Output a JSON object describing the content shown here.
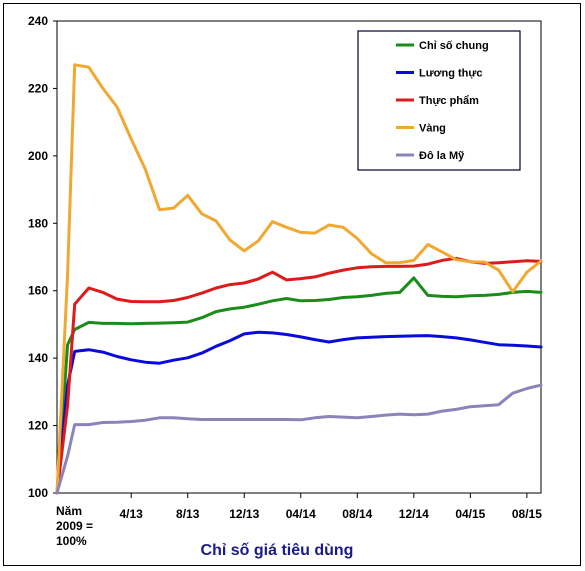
{
  "chart_data": {
    "type": "line",
    "title": "",
    "xlabel": "Chỉ số giá tiêu dùng",
    "ylabel": "",
    "ylim": [
      100,
      240
    ],
    "yticks": [
      100,
      120,
      140,
      160,
      180,
      200,
      220,
      240
    ],
    "base_label": [
      "Năm",
      "2009 =",
      "100%"
    ],
    "xticks": [
      {
        "label": "4/13",
        "x": 4
      },
      {
        "label": "8/13",
        "x": 8
      },
      {
        "label": "12/13",
        "x": 12
      },
      {
        "label": "04/14",
        "x": 16
      },
      {
        "label": "08/14",
        "x": 20
      },
      {
        "label": "12/14",
        "x": 24
      },
      {
        "label": "04/15",
        "x": 28
      },
      {
        "label": "08/15",
        "x": 32
      }
    ],
    "xlim": [
      -1.25,
      33
    ],
    "grid": false,
    "legend_position": "top-right",
    "series": [
      {
        "name": "Chỉ số chung",
        "color": "#1a8c1a",
        "x": [
          -1.25,
          -0.5,
          0,
          1,
          2,
          3,
          4,
          5,
          6,
          7,
          8,
          9,
          10,
          11,
          12,
          13,
          14,
          15,
          16,
          17,
          18,
          19,
          20,
          21,
          22,
          23,
          24,
          25,
          26,
          27,
          28,
          29,
          30,
          31,
          32,
          33
        ],
        "values": [
          100,
          144,
          148.5,
          150.6,
          150.3,
          150.3,
          150.2,
          150.3,
          150.4,
          150.5,
          150.7,
          152,
          153.8,
          154.6,
          155.1,
          156,
          157,
          157.7,
          157,
          157.1,
          157.4,
          158,
          158.2,
          158.6,
          159.2,
          159.5,
          163.8,
          158.6,
          158.3,
          158.2,
          158.5,
          158.6,
          158.9,
          159.5,
          159.8,
          159.5
        ]
      },
      {
        "name": "Lương thực",
        "color": "#0a0adf",
        "x": [
          -1.25,
          -0.5,
          0,
          1,
          2,
          3,
          4,
          5,
          6,
          7,
          8,
          9,
          10,
          11,
          12,
          13,
          14,
          15,
          16,
          17,
          18,
          19,
          20,
          21,
          22,
          23,
          24,
          25,
          26,
          27,
          28,
          29,
          30,
          31,
          32,
          33
        ],
        "values": [
          100,
          132,
          142,
          142.5,
          141.8,
          140.5,
          139.5,
          138.8,
          138.5,
          139.4,
          140.1,
          141.5,
          143.5,
          145.2,
          147.2,
          147.7,
          147.5,
          147,
          146.3,
          145.5,
          144.8,
          145.5,
          146,
          146.2,
          146.4,
          146.5,
          146.6,
          146.7,
          146.4,
          146,
          145.4,
          144.7,
          144,
          143.8,
          143.6,
          143.3
        ]
      },
      {
        "name": "Thực phẩm",
        "color": "#e01a1a",
        "x": [
          -1.25,
          -0.5,
          0,
          1,
          2,
          3,
          4,
          5,
          6,
          7,
          8,
          9,
          10,
          11,
          12,
          13,
          14,
          15,
          16,
          17,
          18,
          19,
          20,
          21,
          22,
          23,
          24,
          25,
          26,
          27,
          28,
          29,
          30,
          31,
          32,
          33
        ],
        "values": [
          100,
          126,
          156,
          160.8,
          159.5,
          157.5,
          156.8,
          156.7,
          156.7,
          157.1,
          158,
          159.3,
          160.8,
          161.8,
          162.3,
          163.5,
          165.5,
          163.2,
          163.6,
          164.1,
          165.2,
          166.1,
          166.8,
          167.1,
          167.2,
          167.2,
          167.3,
          167.9,
          169,
          169.6,
          168.6,
          168.1,
          168.3,
          168.6,
          168.9,
          168.7
        ]
      },
      {
        "name": "Vàng",
        "color": "#f0a830",
        "x": [
          -1.25,
          -0.5,
          0,
          1,
          2,
          3,
          4,
          5,
          6,
          7,
          8,
          9,
          10,
          11,
          12,
          13,
          14,
          15,
          16,
          17,
          18,
          19,
          20,
          21,
          22,
          23,
          24,
          25,
          26,
          27,
          28,
          29,
          30,
          31,
          32,
          33
        ],
        "values": [
          100,
          165,
          227,
          226.3,
          220,
          214.5,
          205,
          196,
          184,
          184.5,
          188.3,
          182.8,
          180.7,
          175,
          171.8,
          174.8,
          180.5,
          178.8,
          177.3,
          177.1,
          179.5,
          178.8,
          175.5,
          171,
          168.3,
          168.3,
          169,
          173.7,
          171.5,
          169.2,
          168.6,
          168.5,
          166.1,
          159.7,
          165.5,
          168.8
        ]
      },
      {
        "name": "Đô la Mỹ",
        "color": "#8a84b8",
        "x": [
          -1.25,
          -0.5,
          0,
          1,
          2,
          3,
          4,
          5,
          6,
          7,
          8,
          9,
          10,
          11,
          12,
          13,
          14,
          15,
          16,
          17,
          18,
          19,
          20,
          21,
          22,
          23,
          24,
          25,
          26,
          27,
          28,
          29,
          30,
          31,
          32,
          33
        ],
        "values": [
          100,
          111,
          120.3,
          120.3,
          120.9,
          121,
          121.2,
          121.6,
          122.3,
          122.3,
          122,
          121.8,
          121.8,
          121.8,
          121.8,
          121.8,
          121.8,
          121.8,
          121.7,
          122.3,
          122.7,
          122.5,
          122.3,
          122.7,
          123.1,
          123.4,
          123.2,
          123.4,
          124.3,
          124.8,
          125.6,
          125.9,
          126.2,
          129.6,
          131,
          132
        ]
      }
    ]
  }
}
